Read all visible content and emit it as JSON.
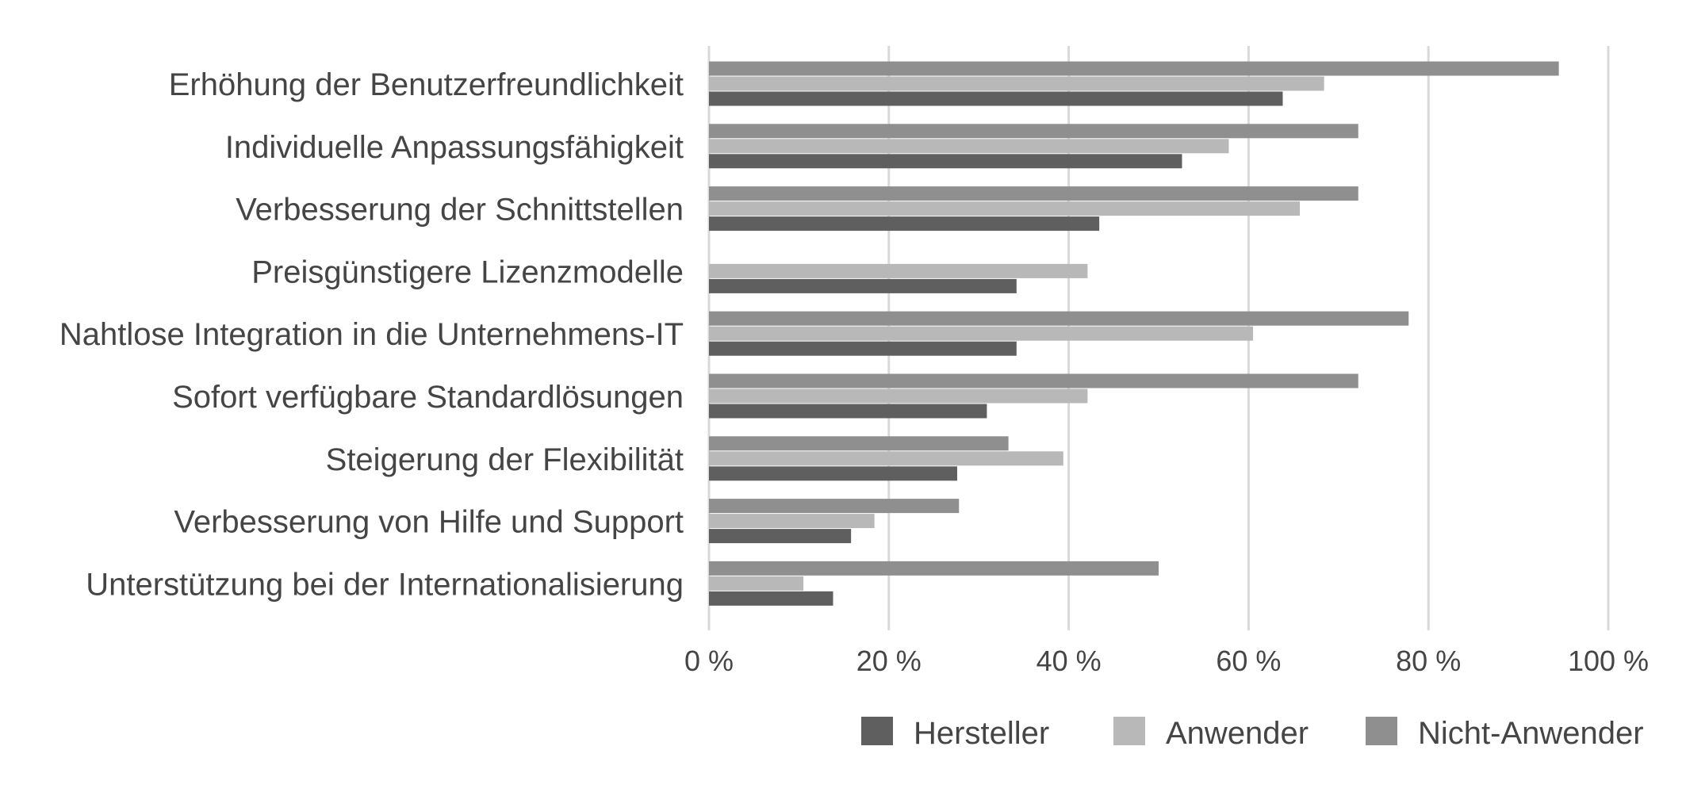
{
  "chart_data": {
    "type": "bar",
    "orientation": "horizontal",
    "title": "",
    "xlabel": "",
    "ylabel": "",
    "xlim": [
      0,
      100
    ],
    "x_ticks": [
      "0 %",
      "20 %",
      "40 %",
      "60 %",
      "80 %",
      "100 %"
    ],
    "grid": true,
    "legend_position": "bottom-right",
    "categories": [
      "Erhöhung der Benutzerfreundlichkeit",
      "Individuelle Anpassungsfähigkeit",
      "Verbesserung der Schnittstellen",
      "Preisgünstigere Lizenzmodelle",
      "Nahtlose Integration in die Unternehmens-IT",
      "Sofort verfügbare Standardlösungen",
      "Steigerung der Flexibilität",
      "Verbesserung von Hilfe und Support",
      "Unterstützung bei der Internationalisierung"
    ],
    "series": [
      {
        "name": "Hersteller",
        "color": "#5f5f5f",
        "values": [
          63.8,
          52.6,
          43.4,
          34.2,
          34.2,
          30.9,
          27.6,
          15.8,
          13.8
        ]
      },
      {
        "name": "Anwender",
        "color": "#b8b8b8",
        "values": [
          68.4,
          57.8,
          65.7,
          42.1,
          60.5,
          42.1,
          39.4,
          18.4,
          10.5
        ]
      },
      {
        "name": "Nicht-Anwender",
        "color": "#8f8f8f",
        "values": [
          94.5,
          72.2,
          72.2,
          0,
          77.8,
          72.2,
          33.3,
          27.8,
          50.0
        ]
      }
    ]
  }
}
